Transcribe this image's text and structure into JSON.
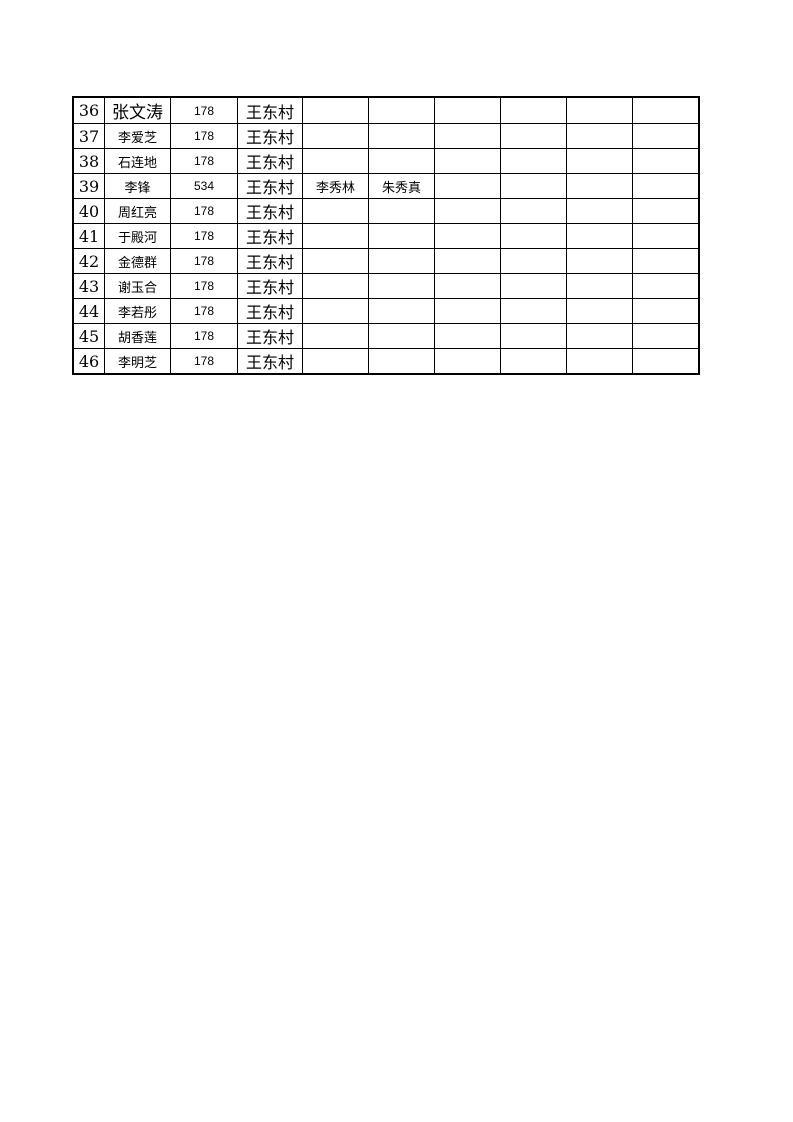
{
  "rows": [
    {
      "no": "36",
      "name": "张文涛",
      "area": "178",
      "village": "王东村",
      "c1": "",
      "c2": ""
    },
    {
      "no": "37",
      "name": "李爱芝",
      "area": "178",
      "village": "王东村",
      "c1": "",
      "c2": ""
    },
    {
      "no": "38",
      "name": "石连地",
      "area": "178",
      "village": "王东村",
      "c1": "",
      "c2": ""
    },
    {
      "no": "39",
      "name": "李锋",
      "area": "534",
      "village": "王东村",
      "c1": "李秀林",
      "c2": "朱秀真"
    },
    {
      "no": "40",
      "name": "周红亮",
      "area": "178",
      "village": "王东村",
      "c1": "",
      "c2": ""
    },
    {
      "no": "41",
      "name": "于殿河",
      "area": "178",
      "village": "王东村",
      "c1": "",
      "c2": ""
    },
    {
      "no": "42",
      "name": "金德群",
      "area": "178",
      "village": "王东村",
      "c1": "",
      "c2": ""
    },
    {
      "no": "43",
      "name": "谢玉合",
      "area": "178",
      "village": "王东村",
      "c1": "",
      "c2": ""
    },
    {
      "no": "44",
      "name": "李若彤",
      "area": "178",
      "village": "王东村",
      "c1": "",
      "c2": ""
    },
    {
      "no": "45",
      "name": "胡香莲",
      "area": "178",
      "village": "王东村",
      "c1": "",
      "c2": ""
    },
    {
      "no": "46",
      "name": "李明芝",
      "area": "178",
      "village": "王东村",
      "c1": "",
      "c2": ""
    }
  ]
}
